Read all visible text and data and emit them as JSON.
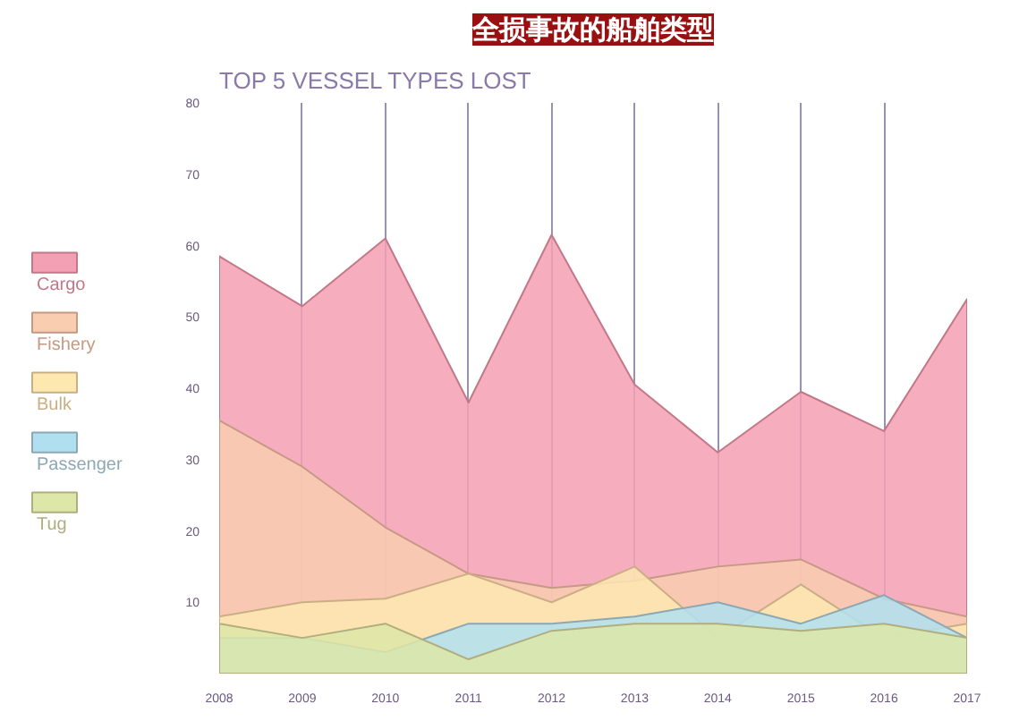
{
  "chart_data": {
    "type": "area",
    "title": "全损事故的船舶类型",
    "subtitle": "TOP 5 VESSEL TYPES LOST",
    "x": [
      2008,
      2009,
      2010,
      2011,
      2012,
      2013,
      2014,
      2015,
      2016,
      2017
    ],
    "xlim": [
      2008,
      2017
    ],
    "xticks": [
      2008,
      2009,
      2010,
      2011,
      2012,
      2013,
      2014,
      2015,
      2016,
      2017
    ],
    "ylim": [
      0,
      80
    ],
    "yticks": [
      10,
      20,
      30,
      40,
      50,
      60,
      70,
      80
    ],
    "grid": "x",
    "legend": "left",
    "series": [
      {
        "name": "Cargo",
        "color": "#f4a0b4",
        "values": [
          58.5,
          51.5,
          61,
          38,
          61.5,
          40.5,
          31,
          39.5,
          34,
          52.5
        ]
      },
      {
        "name": "Fishery",
        "color": "#f8cdb0",
        "values": [
          35.5,
          29,
          20.5,
          14,
          12,
          13,
          15,
          16,
          10.5,
          8
        ]
      },
      {
        "name": "Bulk",
        "color": "#fde8b0",
        "values": [
          8,
          10,
          10.5,
          14,
          10,
          15,
          5,
          12.5,
          5,
          7
        ]
      },
      {
        "name": "Passenger",
        "color": "#b0e0f0",
        "values": [
          5,
          5,
          3,
          7,
          7,
          8,
          10,
          7,
          11,
          5
        ]
      },
      {
        "name": "Tug",
        "color": "#dde8a8",
        "values": [
          7,
          5,
          7,
          2,
          6,
          7,
          7,
          6,
          7,
          5
        ]
      }
    ]
  }
}
